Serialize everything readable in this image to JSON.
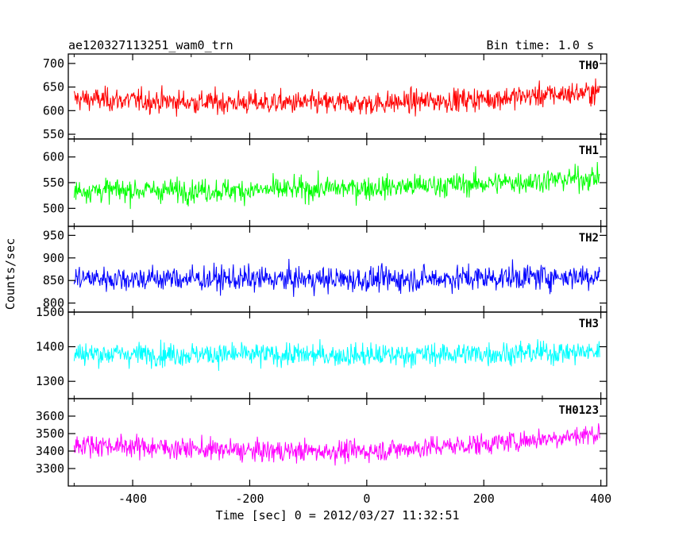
{
  "chart_data": {
    "type": "line",
    "title": "ae120327113251_wam0_trn",
    "subtitle": "Bin time: 1.0 s",
    "xlabel": "Time [sec] 0 = 2012/03/27 11:32:51",
    "ylabel": "Counts/sec",
    "xlim": [
      -510,
      410
    ],
    "xticks": [
      -400,
      -200,
      0,
      200,
      400
    ],
    "x_range": [
      -500,
      398
    ],
    "panels": [
      {
        "name": "TH0",
        "color": "#ff0000",
        "ylim": [
          540,
          720
        ],
        "yticks": [
          550,
          600,
          650,
          700
        ],
        "mean": 620,
        "noise": 28,
        "trend": [
          [
            -500,
            625
          ],
          [
            -300,
            618
          ],
          [
            0,
            615
          ],
          [
            200,
            625
          ],
          [
            398,
            640
          ]
        ]
      },
      {
        "name": "TH1",
        "color": "#00ff00",
        "ylim": [
          465,
          635
        ],
        "yticks": [
          500,
          550,
          600
        ],
        "mean": 540,
        "noise": 26,
        "trend": [
          [
            -500,
            535
          ],
          [
            -200,
            535
          ],
          [
            0,
            540
          ],
          [
            200,
            548
          ],
          [
            398,
            560
          ]
        ]
      },
      {
        "name": "TH2",
        "color": "#0000ff",
        "ylim": [
          780,
          970
        ],
        "yticks": [
          800,
          850,
          900,
          950
        ],
        "mean": 855,
        "noise": 32,
        "trend": [
          [
            -500,
            855
          ],
          [
            0,
            852
          ],
          [
            398,
            860
          ]
        ]
      },
      {
        "name": "TH3",
        "color": "#00ffff",
        "ylim": [
          1250,
          1500
        ],
        "yticks": [
          1300,
          1400,
          1500
        ],
        "mean": 1380,
        "noise": 38,
        "trend": [
          [
            -500,
            1380
          ],
          [
            0,
            1375
          ],
          [
            398,
            1385
          ]
        ]
      },
      {
        "name": "TH0123",
        "color": "#ff00ff",
        "ylim": [
          3200,
          3700
        ],
        "yticks": [
          3300,
          3400,
          3500,
          3600
        ],
        "mean": 3420,
        "noise": 70,
        "trend": [
          [
            -500,
            3440
          ],
          [
            -200,
            3400
          ],
          [
            0,
            3400
          ],
          [
            200,
            3440
          ],
          [
            398,
            3500
          ]
        ]
      }
    ]
  }
}
